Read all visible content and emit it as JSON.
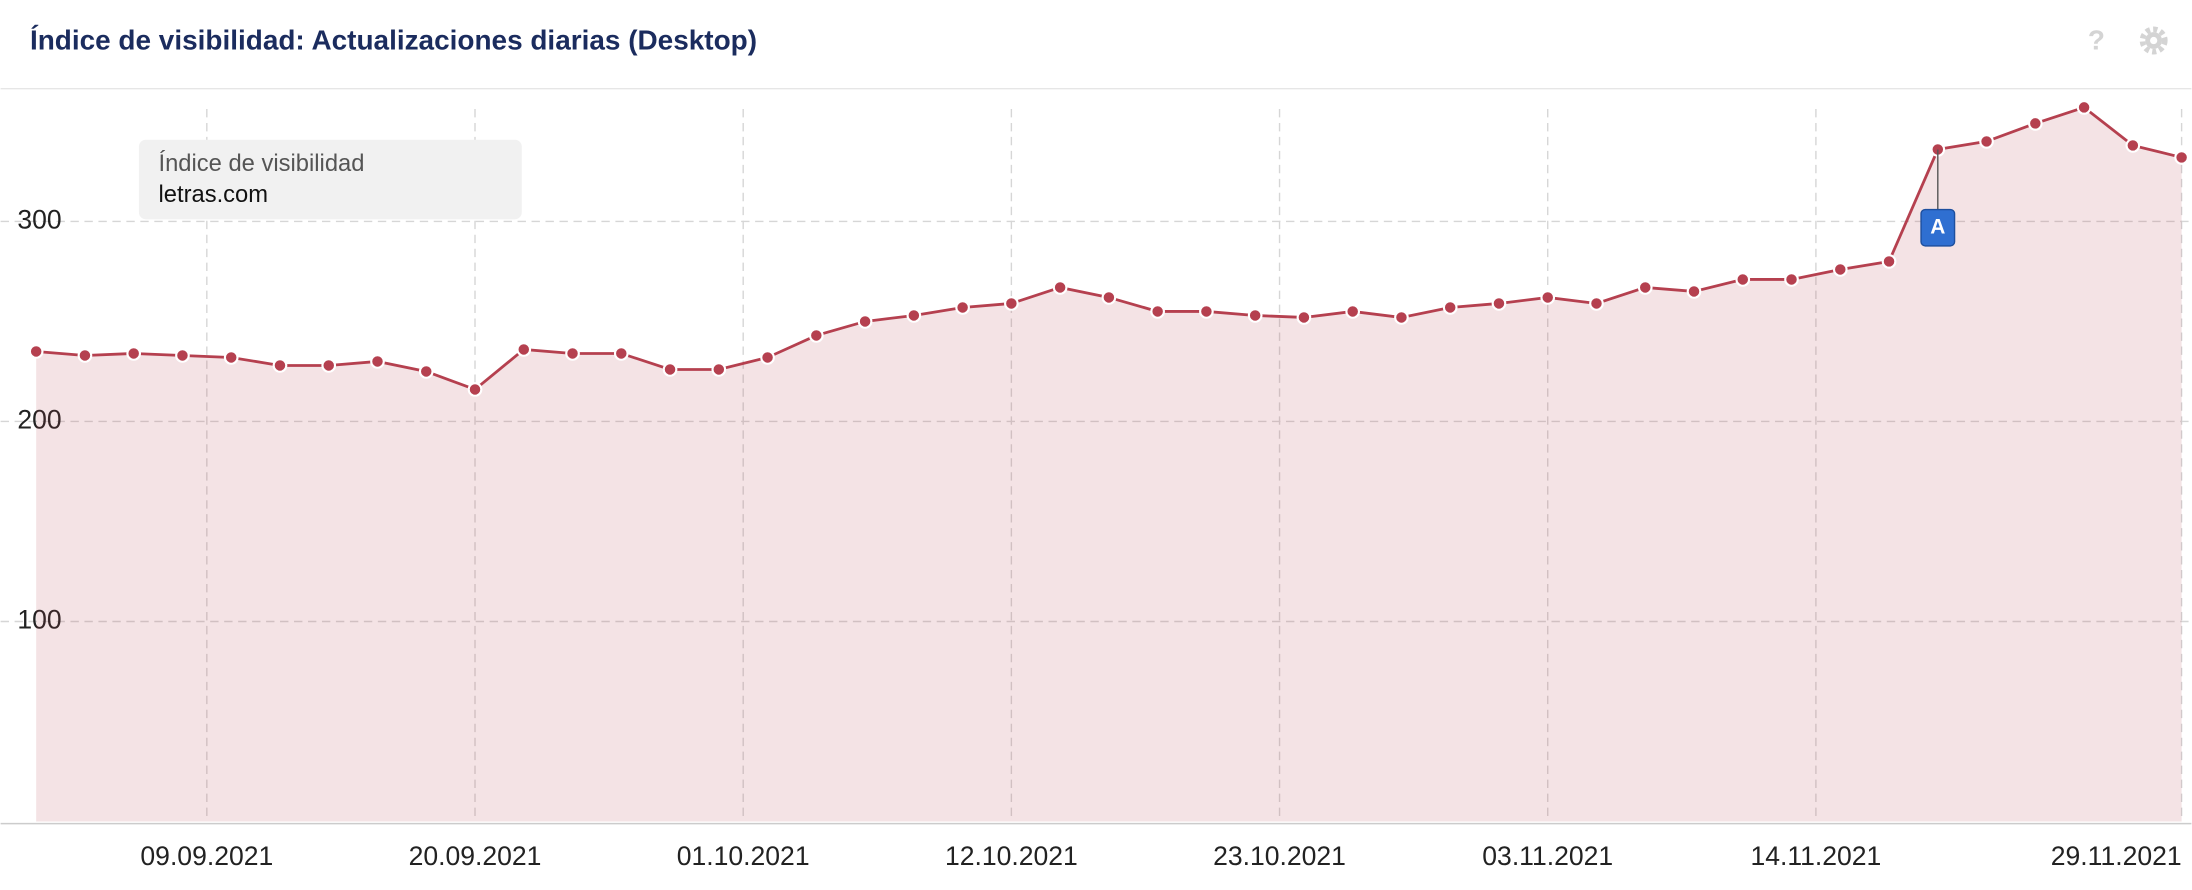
{
  "chart_data": {
    "type": "area",
    "title": "Índice de visibilidad: Actualizaciones diarias (Desktop)",
    "legend_title": "Índice de visibilidad",
    "x": [
      "02.09.2021",
      "04.09.2021",
      "06.09.2021",
      "08.09.2021",
      "10.09.2021",
      "12.09.2021",
      "14.09.2021",
      "16.09.2021",
      "18.09.2021",
      "20.09.2021",
      "22.09.2021",
      "24.09.2021",
      "26.09.2021",
      "28.09.2021",
      "30.09.2021",
      "02.10.2021",
      "04.10.2021",
      "06.10.2021",
      "08.10.2021",
      "10.10.2021",
      "12.10.2021",
      "14.10.2021",
      "16.10.2021",
      "18.10.2021",
      "20.10.2021",
      "22.10.2021",
      "24.10.2021",
      "26.10.2021",
      "28.10.2021",
      "30.10.2021",
      "01.11.2021",
      "03.11.2021",
      "05.11.2021",
      "07.11.2021",
      "09.11.2021",
      "11.11.2021",
      "13.11.2021",
      "15.11.2021",
      "17.11.2021",
      "19.11.2021",
      "21.11.2021",
      "23.11.2021",
      "25.11.2021",
      "27.11.2021",
      "29.11.2021"
    ],
    "series": [
      {
        "name": "letras.com",
        "color": "#b5404f",
        "values": [
          235,
          233,
          234,
          233,
          232,
          228,
          228,
          230,
          225,
          216,
          236,
          234,
          234,
          226,
          226,
          232,
          243,
          250,
          253,
          257,
          259,
          267,
          262,
          255,
          255,
          253,
          252,
          255,
          252,
          257,
          259,
          262,
          259,
          267,
          265,
          271,
          271,
          276,
          280,
          336,
          340,
          349,
          357,
          338,
          332
        ]
      }
    ],
    "xlim": [
      "01.09.2021",
      "29.11.2021"
    ],
    "xticks": [
      "09.09.2021",
      "20.09.2021",
      "01.10.2021",
      "12.10.2021",
      "23.10.2021",
      "03.11.2021",
      "14.11.2021",
      "29.11.2021"
    ],
    "ylim": [
      0,
      366
    ],
    "yticks": [
      100,
      200,
      300
    ],
    "grid": true,
    "annotations": [
      {
        "x": "19.11.2021",
        "label": "A"
      }
    ]
  }
}
